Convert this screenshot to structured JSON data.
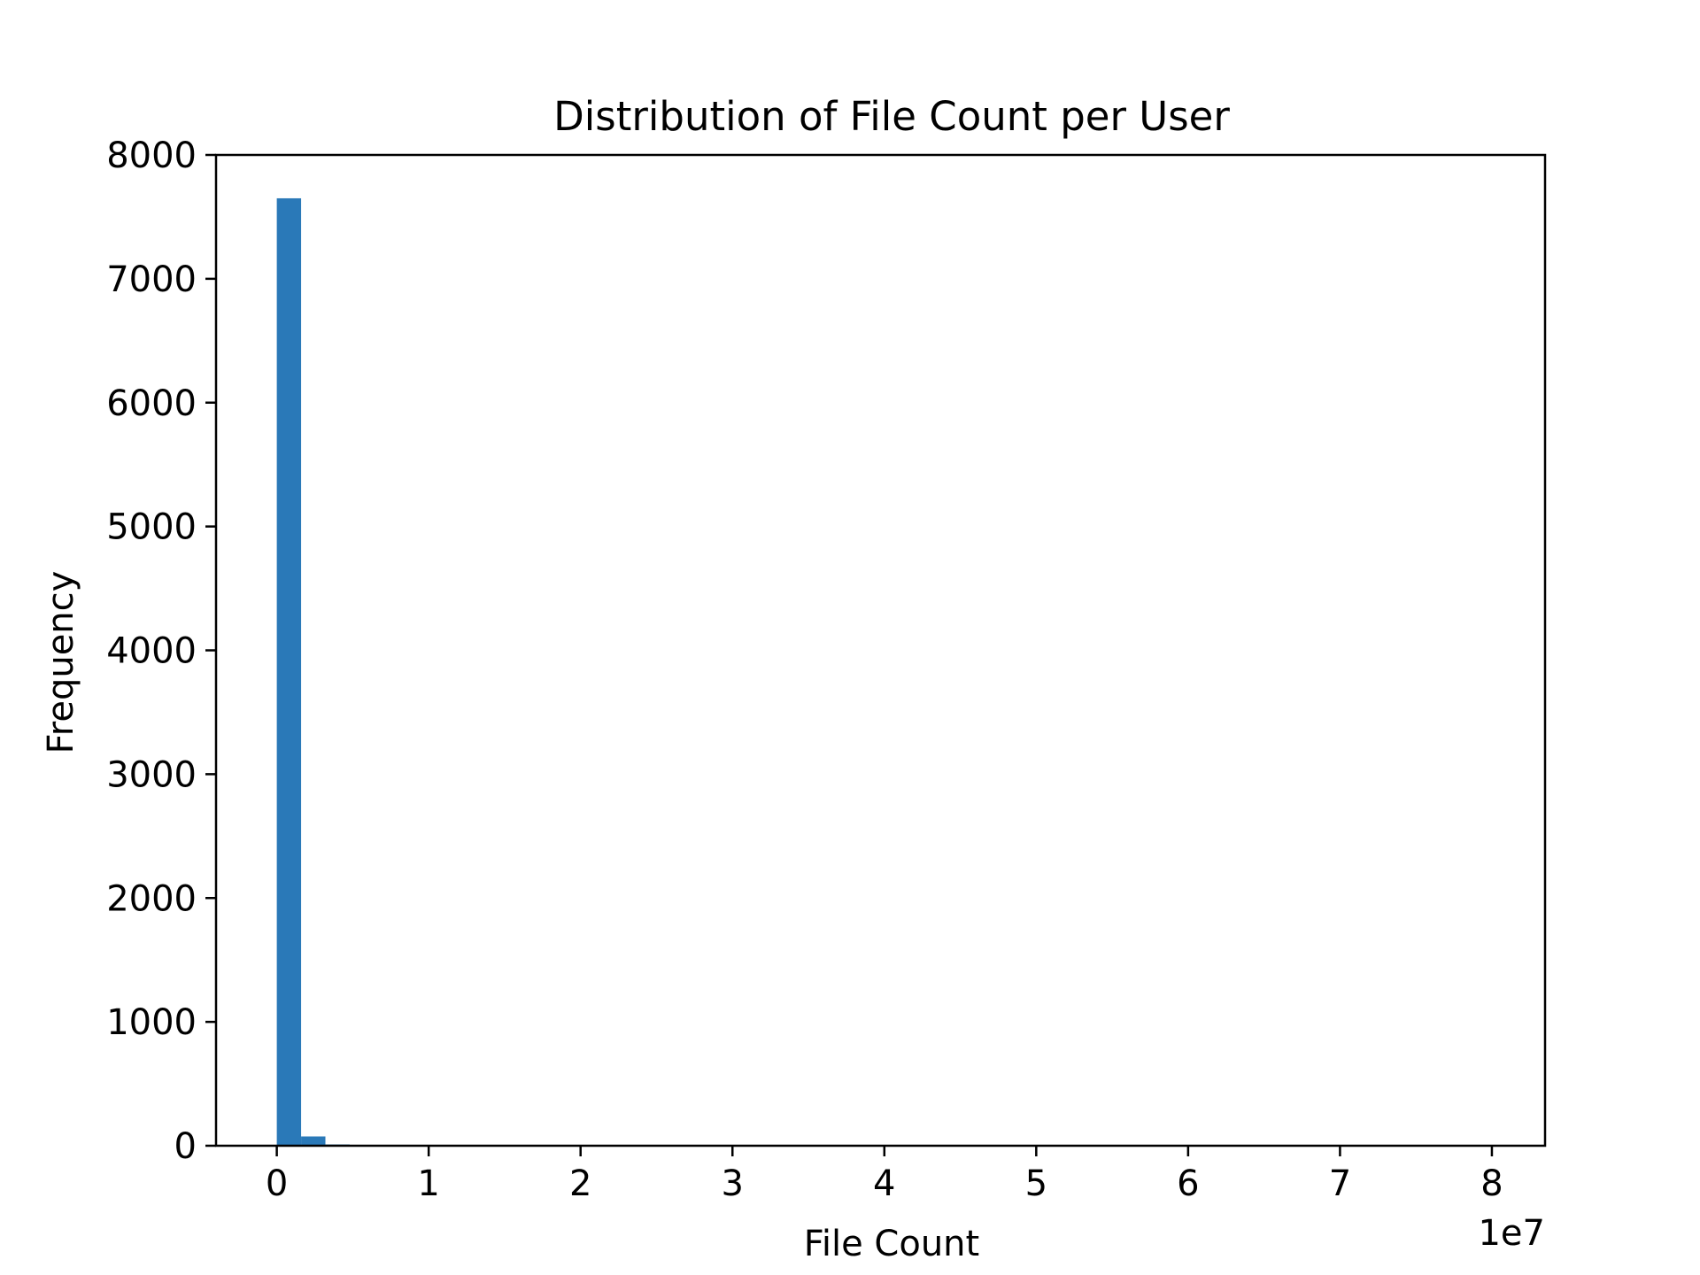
{
  "chart_data": {
    "type": "bar",
    "title": "Distribution of File Count per User",
    "xlabel": "File Count",
    "ylabel": "Frequency",
    "x_offset_label": "1e7",
    "xlim": [
      -0.4,
      8.35
    ],
    "ylim": [
      0,
      8000
    ],
    "x_ticks": [
      0,
      1,
      2,
      3,
      4,
      5,
      6,
      7,
      8
    ],
    "x_tick_labels": [
      "0",
      "1",
      "2",
      "3",
      "4",
      "5",
      "6",
      "7",
      "8"
    ],
    "y_ticks": [
      0,
      1000,
      2000,
      3000,
      4000,
      5000,
      6000,
      7000,
      8000
    ],
    "y_tick_labels": [
      "0",
      "1000",
      "2000",
      "3000",
      "4000",
      "5000",
      "6000",
      "7000",
      "8000"
    ],
    "bin_width": 0.16,
    "bins": [
      {
        "start": 0.0,
        "end": 0.16,
        "value": 7650
      },
      {
        "start": 0.16,
        "end": 0.32,
        "value": 75
      },
      {
        "start": 0.32,
        "end": 0.48,
        "value": 10
      },
      {
        "start": 0.48,
        "end": 0.64,
        "value": 3
      },
      {
        "start": 0.64,
        "end": 0.8,
        "value": 1
      }
    ],
    "bar_color": "#2a79b8",
    "grid": false,
    "legend": "none"
  }
}
